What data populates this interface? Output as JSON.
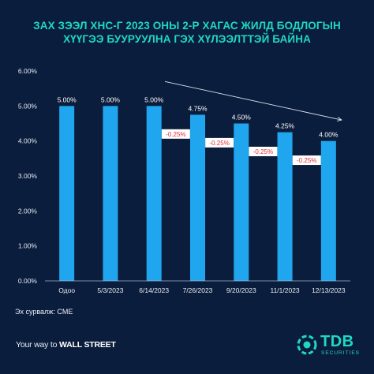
{
  "header": {
    "title_line1": "ЗАХ ЗЭЭЛ ХНС-Г 2023 ОНЫ 2-Р ХАГАС ЖИЛД БОДЛОГЫН",
    "title_line2": "ХҮҮГЭЭ БУУРУУЛНА ГЭХ ХҮЛЭЭЛТТЭЙ БАЙНА"
  },
  "chart_data": {
    "type": "bar",
    "categories": [
      "Одоо",
      "5/3/2023",
      "6/14/2023",
      "7/26/2023",
      "9/20/2023",
      "11/1/2023",
      "12/13/2023"
    ],
    "values": [
      5.0,
      5.0,
      5.0,
      4.75,
      4.5,
      4.25,
      4.0
    ],
    "value_labels": [
      "5.00%",
      "5.00%",
      "5.00%",
      "4.75%",
      "4.50%",
      "4.25%",
      "4.00%"
    ],
    "y_ticks": [
      0,
      1,
      2,
      3,
      4,
      5,
      6
    ],
    "y_tick_labels": [
      "0.00%",
      "1.00%",
      "2.00%",
      "3.00%",
      "4.00%",
      "5.00%",
      "6.00%"
    ],
    "ylim": [
      0,
      6
    ],
    "change_labels": [
      {
        "between": [
          2,
          3
        ],
        "level": 4.2,
        "text": "-0.25%"
      },
      {
        "between": [
          3,
          4
        ],
        "level": 3.95,
        "text": "-0.25%"
      },
      {
        "between": [
          4,
          5
        ],
        "level": 3.7,
        "text": "-0.25%"
      },
      {
        "between": [
          5,
          6
        ],
        "level": 3.45,
        "text": "-0.25%"
      }
    ],
    "trend_arrow": {
      "from": {
        "x_index": 2.25,
        "value": 5.7
      },
      "to": {
        "x_index": 6.3,
        "value": 4.6
      }
    },
    "grid": false,
    "bar_color": "#1fa6ee",
    "change_label_bg": "#ffffff",
    "change_label_color": "#e0303a"
  },
  "footer": {
    "source": "Эх сурвалж: CME",
    "tagline_prefix": "Your way to ",
    "tagline_bold": "WALL STREET",
    "logo_name": "TDB",
    "logo_sub": "SECURITIES"
  },
  "colors": {
    "background": "#0b1d3c",
    "accent": "#1fd8c4"
  }
}
